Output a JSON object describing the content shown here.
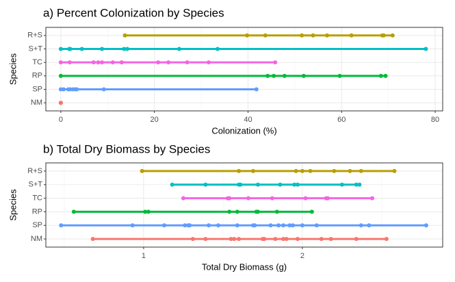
{
  "chart_data": [
    {
      "type": "dotrange",
      "title": "a) Percent Colonization by Species",
      "x_label": "Colonization (%)",
      "y_label": "Species",
      "xlim": [
        -3.2,
        81.6
      ],
      "xticks": [
        0,
        20,
        40,
        60,
        80
      ],
      "grid": true,
      "series": [
        {
          "name": "NM",
          "color": "#F8766D",
          "values": [
            0,
            0,
            0
          ]
        },
        {
          "name": "SP",
          "color": "#619CFF",
          "values": [
            0,
            0.6,
            1.6,
            2,
            2.6,
            3.1,
            3.4,
            9.2,
            41.8
          ]
        },
        {
          "name": "RP",
          "color": "#00BA38",
          "values": [
            0,
            44.2,
            45.5,
            47.8,
            51.9,
            59.6,
            68.4,
            69.4
          ]
        },
        {
          "name": "TC",
          "color": "#F564E3",
          "values": [
            0,
            1.9,
            7,
            8,
            8.8,
            11.1,
            13,
            20.8,
            23,
            27,
            31.6,
            45.8
          ]
        },
        {
          "name": "S+T",
          "color": "#00BFC4",
          "values": [
            0,
            1.8,
            2,
            4.5,
            8.8,
            13.5,
            14.2,
            25.3,
            33.5,
            78
          ]
        },
        {
          "name": "R+S",
          "color": "#B79F00",
          "values": [
            13.7,
            39.8,
            43.7,
            51.5,
            53.9,
            56.9,
            62.1,
            68.7,
            69,
            70.9
          ]
        }
      ]
    },
    {
      "type": "dotrange",
      "title": "b) Total Dry Biomass by Species",
      "x_label": "Total Dry Biomass (g)",
      "y_label": "Species",
      "xlim": [
        0.384,
        2.884
      ],
      "xticks": [
        1,
        2
      ],
      "grid": true,
      "series": [
        {
          "name": "NM",
          "color": "#F8766D",
          "values": [
            0.68,
            1.31,
            1.39,
            1.55,
            1.57,
            1.6,
            1.75,
            1.76,
            1.83,
            1.88,
            1.9,
            1.97,
            2.12,
            2.18,
            2.34,
            2.53
          ]
        },
        {
          "name": "SP",
          "color": "#619CFF",
          "values": [
            0.48,
            0.93,
            1.13,
            1.26,
            1.28,
            1.29,
            1.41,
            1.47,
            1.59,
            1.69,
            1.7,
            1.8,
            1.85,
            1.88,
            1.92,
            1.94,
            2,
            2.09,
            2.37,
            2.42,
            2.78
          ]
        },
        {
          "name": "RP",
          "color": "#00BA38",
          "values": [
            0.56,
            1.01,
            1.03,
            1.54,
            1.59,
            1.71,
            1.72,
            1.84,
            2.06
          ]
        },
        {
          "name": "TC",
          "color": "#F564E3",
          "values": [
            1.25,
            1.53,
            1.54,
            1.66,
            1.81,
            2.02,
            2.15,
            2.16,
            2.44
          ]
        },
        {
          "name": "S+T",
          "color": "#00BFC4",
          "values": [
            1.18,
            1.39,
            1.6,
            1.61,
            1.72,
            1.86,
            1.95,
            1.97,
            2.25,
            2.34,
            2.36
          ]
        },
        {
          "name": "R+S",
          "color": "#B79F00",
          "values": [
            0.99,
            1.6,
            1.69,
            1.96,
            2,
            2.05,
            2.2,
            2.3,
            2.37,
            2.58
          ]
        }
      ]
    }
  ]
}
